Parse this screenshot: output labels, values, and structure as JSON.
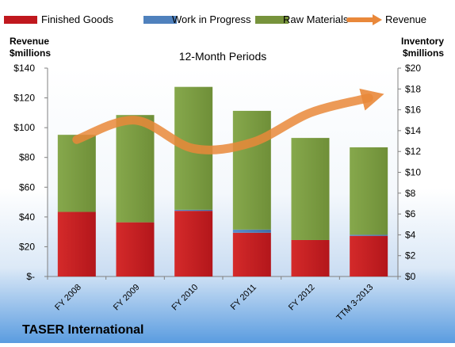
{
  "chart_data": {
    "type": "bar",
    "subtitle": "12-Month Periods",
    "company": "TASER International",
    "left_axis": {
      "title_line1": "Revenue",
      "title_line2": "$millions",
      "ylim": [
        0,
        140
      ],
      "ticks": [
        0,
        20,
        40,
        60,
        80,
        100,
        120,
        140
      ],
      "tick_labels": [
        "$-",
        "$20",
        "$40",
        "$60",
        "$80",
        "$100",
        "$120",
        "$140"
      ]
    },
    "right_axis": {
      "title_line1": "Inventory",
      "title_line2": "$millions",
      "ylim": [
        0,
        20
      ],
      "ticks": [
        0,
        2,
        4,
        6,
        8,
        10,
        12,
        14,
        16,
        18,
        20
      ],
      "tick_labels": [
        "$0",
        "$2",
        "$4",
        "$6",
        "$8",
        "$10",
        "$12",
        "$14",
        "$16",
        "$18",
        "$20"
      ]
    },
    "categories": [
      "FY 2008",
      "FY 2009",
      "FY 2010",
      "FY 2011",
      "FY 2012",
      "TTM 3-2013"
    ],
    "series": [
      {
        "name": "Finished Goods",
        "type": "bar",
        "axis": "right",
        "color": "#C0181E",
        "values": [
          6.2,
          5.2,
          6.3,
          4.2,
          3.5,
          3.9
        ]
      },
      {
        "name": "Work in Progress",
        "type": "bar",
        "axis": "right",
        "color": "#4F81BD",
        "values": [
          0.0,
          0.0,
          0.1,
          0.3,
          0.0,
          0.1
        ]
      },
      {
        "name": "Raw Materials",
        "type": "bar",
        "axis": "right",
        "color": "#77933C",
        "values": [
          7.4,
          10.3,
          11.8,
          11.4,
          9.8,
          8.4
        ]
      },
      {
        "name": "Revenue",
        "type": "line",
        "axis": "left",
        "color": "#E9883A",
        "values": [
          92,
          105,
          86,
          90,
          110,
          120
        ]
      }
    ],
    "legend_position": "top",
    "grid": false
  }
}
